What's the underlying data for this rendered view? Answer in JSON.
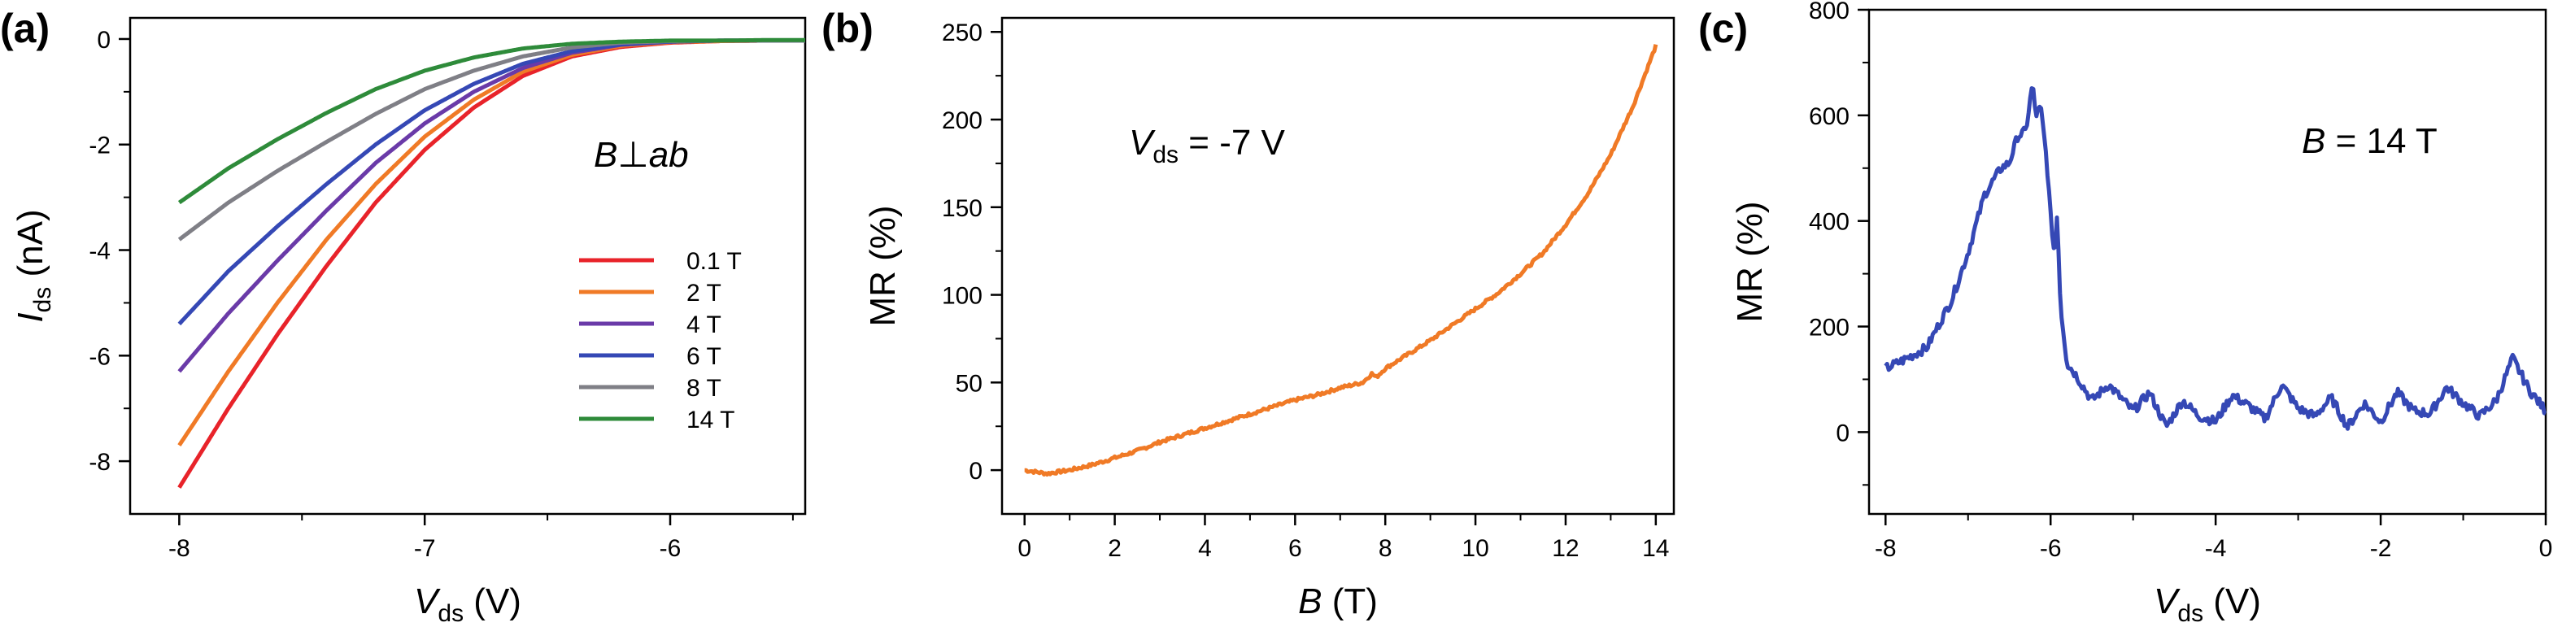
{
  "chart_data": [
    {
      "panel": "(a)",
      "type": "line",
      "xlabel_main": "V",
      "xlabel_sub": "ds",
      "xlabel_unit": "(V)",
      "ylabel_main": "I",
      "ylabel_sub": "ds",
      "ylabel_unit": "(nA)",
      "xlim": [
        -8.2,
        -5.45
      ],
      "ylim": [
        -9.0,
        0.4
      ],
      "xticks": [
        -8,
        -7,
        -6
      ],
      "xtick_labels": [
        "-8",
        "-7",
        "-6"
      ],
      "yticks": [
        0,
        -2,
        -4,
        -6,
        -8
      ],
      "ytick_labels": [
        "0",
        "-2",
        "-4",
        "-6",
        "-8"
      ],
      "annotation": {
        "a": "B",
        "b": "⊥",
        "c": "ab"
      },
      "series": [
        {
          "name": "0.1 T",
          "color": "#e8232a",
          "x": [
            -8.0,
            -7.8,
            -7.6,
            -7.4,
            -7.2,
            -7.0,
            -6.8,
            -6.6,
            -6.4,
            -6.2,
            -6.0,
            -5.8,
            -5.6,
            -5.45
          ],
          "values": [
            -8.5,
            -7.0,
            -5.6,
            -4.3,
            -3.1,
            -2.1,
            -1.3,
            -0.7,
            -0.33,
            -0.15,
            -0.07,
            -0.04,
            -0.03,
            -0.03
          ]
        },
        {
          "name": "2 T",
          "color": "#f07a26",
          "x": [
            -8.0,
            -7.8,
            -7.6,
            -7.4,
            -7.2,
            -7.0,
            -6.8,
            -6.6,
            -6.4,
            -6.2,
            -6.0,
            -5.8,
            -5.6,
            -5.45
          ],
          "values": [
            -7.7,
            -6.3,
            -5.0,
            -3.8,
            -2.75,
            -1.85,
            -1.15,
            -0.62,
            -0.3,
            -0.13,
            -0.06,
            -0.04,
            -0.03,
            -0.03
          ]
        },
        {
          "name": "4 T",
          "color": "#6a3aa8",
          "x": [
            -8.0,
            -7.8,
            -7.6,
            -7.4,
            -7.2,
            -7.0,
            -6.8,
            -6.6,
            -6.4,
            -6.2,
            -6.0,
            -5.8,
            -5.6,
            -5.45
          ],
          "values": [
            -6.3,
            -5.2,
            -4.2,
            -3.25,
            -2.35,
            -1.6,
            -1.0,
            -0.55,
            -0.26,
            -0.11,
            -0.05,
            -0.03,
            -0.03,
            -0.03
          ]
        },
        {
          "name": "6 T",
          "color": "#3548b5",
          "x": [
            -8.0,
            -7.8,
            -7.6,
            -7.4,
            -7.2,
            -7.0,
            -6.8,
            -6.6,
            -6.4,
            -6.2,
            -6.0,
            -5.8,
            -5.6,
            -5.45
          ],
          "values": [
            -5.4,
            -4.4,
            -3.55,
            -2.75,
            -2.0,
            -1.35,
            -0.85,
            -0.47,
            -0.23,
            -0.1,
            -0.05,
            -0.03,
            -0.03,
            -0.03
          ]
        },
        {
          "name": "8 T",
          "color": "#7f7f86",
          "x": [
            -8.0,
            -7.8,
            -7.6,
            -7.4,
            -7.2,
            -7.0,
            -6.8,
            -6.6,
            -6.4,
            -6.2,
            -6.0,
            -5.8,
            -5.6,
            -5.45
          ],
          "values": [
            -3.8,
            -3.1,
            -2.5,
            -1.95,
            -1.42,
            -0.95,
            -0.6,
            -0.33,
            -0.16,
            -0.07,
            -0.04,
            -0.03,
            -0.03,
            -0.03
          ]
        },
        {
          "name": "14 T",
          "color": "#2e8b3a",
          "x": [
            -8.0,
            -7.8,
            -7.6,
            -7.4,
            -7.2,
            -7.0,
            -6.8,
            -6.6,
            -6.4,
            -6.2,
            -6.0,
            -5.8,
            -5.6,
            -5.45
          ],
          "values": [
            -3.1,
            -2.45,
            -1.9,
            -1.4,
            -0.95,
            -0.6,
            -0.35,
            -0.18,
            -0.09,
            -0.05,
            -0.03,
            -0.03,
            -0.02,
            -0.02
          ]
        }
      ]
    },
    {
      "panel": "(b)",
      "type": "line",
      "xlabel_main": "B",
      "xlabel_unit": "(T)",
      "ylabel": "MR (%)",
      "xlim": [
        -0.5,
        14.4
      ],
      "ylim": [
        -25,
        258
      ],
      "xticks": [
        0,
        2,
        4,
        6,
        8,
        10,
        12,
        14
      ],
      "xtick_labels": [
        "0",
        "2",
        "4",
        "6",
        "8",
        "10",
        "12",
        "14"
      ],
      "yticks": [
        0,
        50,
        100,
        150,
        200,
        250
      ],
      "ytick_labels": [
        "0",
        "50",
        "100",
        "150",
        "200",
        "250"
      ],
      "annotation": {
        "a": "V",
        "b": "ds",
        "c": " = -7 V"
      },
      "series": [
        {
          "color": "#f07a26",
          "x": [
            0.0,
            0.5,
            1.0,
            1.5,
            2.0,
            2.5,
            3.0,
            3.5,
            4.0,
            4.5,
            5.0,
            5.5,
            6.0,
            6.5,
            7.0,
            7.5,
            7.7,
            7.8,
            8.0,
            8.5,
            9.0,
            9.5,
            10.0,
            10.5,
            11.0,
            11.5,
            12.0,
            12.5,
            13.0,
            13.5,
            14.0
          ],
          "values": [
            0,
            -2,
            0,
            3,
            7,
            11,
            16,
            20,
            24,
            28,
            32,
            36,
            40,
            43,
            47,
            50,
            55,
            53,
            58,
            66,
            74,
            83,
            92,
            101,
            112,
            124,
            140,
            158,
            180,
            208,
            242
          ]
        }
      ]
    },
    {
      "panel": "(c)",
      "type": "line",
      "xlabel_main": "V",
      "xlabel_sub": "ds",
      "xlabel_unit": "(V)",
      "ylabel": "MR (%)",
      "xlim": [
        -8.2,
        0
      ],
      "ylim": [
        -155,
        800
      ],
      "xticks": [
        -8,
        -6,
        -4,
        -2,
        0
      ],
      "xtick_labels": [
        "-8",
        "-6",
        "-4",
        "-2",
        "0"
      ],
      "yticks": [
        0,
        200,
        400,
        600,
        800
      ],
      "ytick_labels": [
        "0",
        "200",
        "400",
        "600",
        "800"
      ],
      "annotation": {
        "a": "B",
        "c": " = 14 T"
      },
      "series": [
        {
          "color": "#3548b5",
          "x": [
            -8.0,
            -7.8,
            -7.5,
            -7.2,
            -7.0,
            -6.8,
            -6.6,
            -6.5,
            -6.4,
            -6.3,
            -6.22,
            -6.18,
            -6.12,
            -6.05,
            -6.0,
            -5.95,
            -5.92,
            -5.88,
            -5.8,
            -5.7,
            -5.5,
            -5.3,
            -5.0,
            -4.8,
            -4.6,
            -4.4,
            -4.2,
            -4.0,
            -3.8,
            -3.6,
            -3.4,
            -3.2,
            -3.0,
            -2.8,
            -2.6,
            -2.4,
            -2.2,
            -2.0,
            -1.8,
            -1.6,
            -1.4,
            -1.2,
            -1.0,
            -0.8,
            -0.6,
            -0.4,
            -0.2,
            0.0
          ],
          "values": [
            120,
            135,
            160,
            250,
            340,
            450,
            500,
            510,
            560,
            570,
            660,
            600,
            615,
            520,
            410,
            330,
            420,
            240,
            130,
            110,
            60,
            90,
            40,
            75,
            10,
            60,
            30,
            20,
            70,
            50,
            25,
            90,
            45,
            30,
            65,
            10,
            55,
            20,
            75,
            40,
            35,
            85,
            55,
            30,
            60,
            140,
            80,
            40
          ]
        }
      ]
    }
  ]
}
